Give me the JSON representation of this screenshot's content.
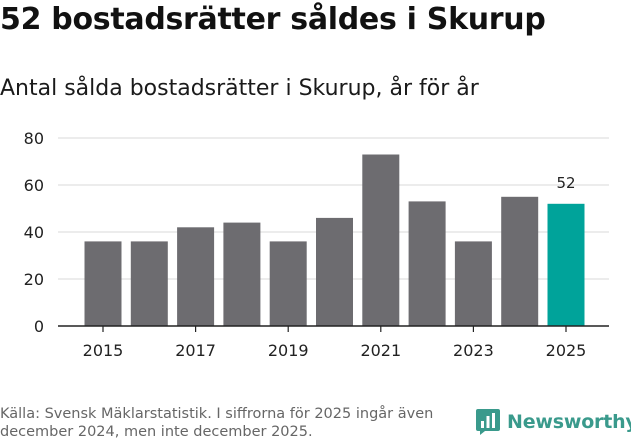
{
  "title": "52 bostadsrätter såldes i Skurup",
  "subtitle": "Antal sålda bostadsrätter i Skurup, år för år",
  "source": "Källa: Svensk Mäklarstatistik. I siffrorna för 2025 ingår även december 2024, men inte december 2025.",
  "brand": {
    "name": "Newsworthy",
    "icon": "newsworthy-logo-icon",
    "color": "#3a9a8c"
  },
  "colors": {
    "bar": "#6d6c70",
    "highlight": "#00a39a",
    "grid": "#d9d9d9",
    "axis": "#222222"
  },
  "chart_data": {
    "type": "bar",
    "title": "52 bostadsrätter såldes i Skurup",
    "subtitle": "Antal sålda bostadsrätter i Skurup, år för år",
    "xlabel": "",
    "ylabel": "",
    "categories": [
      "2015",
      "2016",
      "2017",
      "2018",
      "2019",
      "2020",
      "2021",
      "2022",
      "2023",
      "2024",
      "2025"
    ],
    "values": [
      36,
      36,
      42,
      44,
      36,
      46,
      73,
      53,
      36,
      55,
      52
    ],
    "x_tick_labels": [
      "2015",
      "2017",
      "2019",
      "2021",
      "2023",
      "2025"
    ],
    "y_ticks": [
      0,
      20,
      40,
      60,
      80
    ],
    "ylim": [
      0,
      80
    ],
    "grid": true,
    "highlight_category": "2025",
    "data_labels": [
      {
        "category": "2025",
        "text": "52"
      }
    ]
  }
}
